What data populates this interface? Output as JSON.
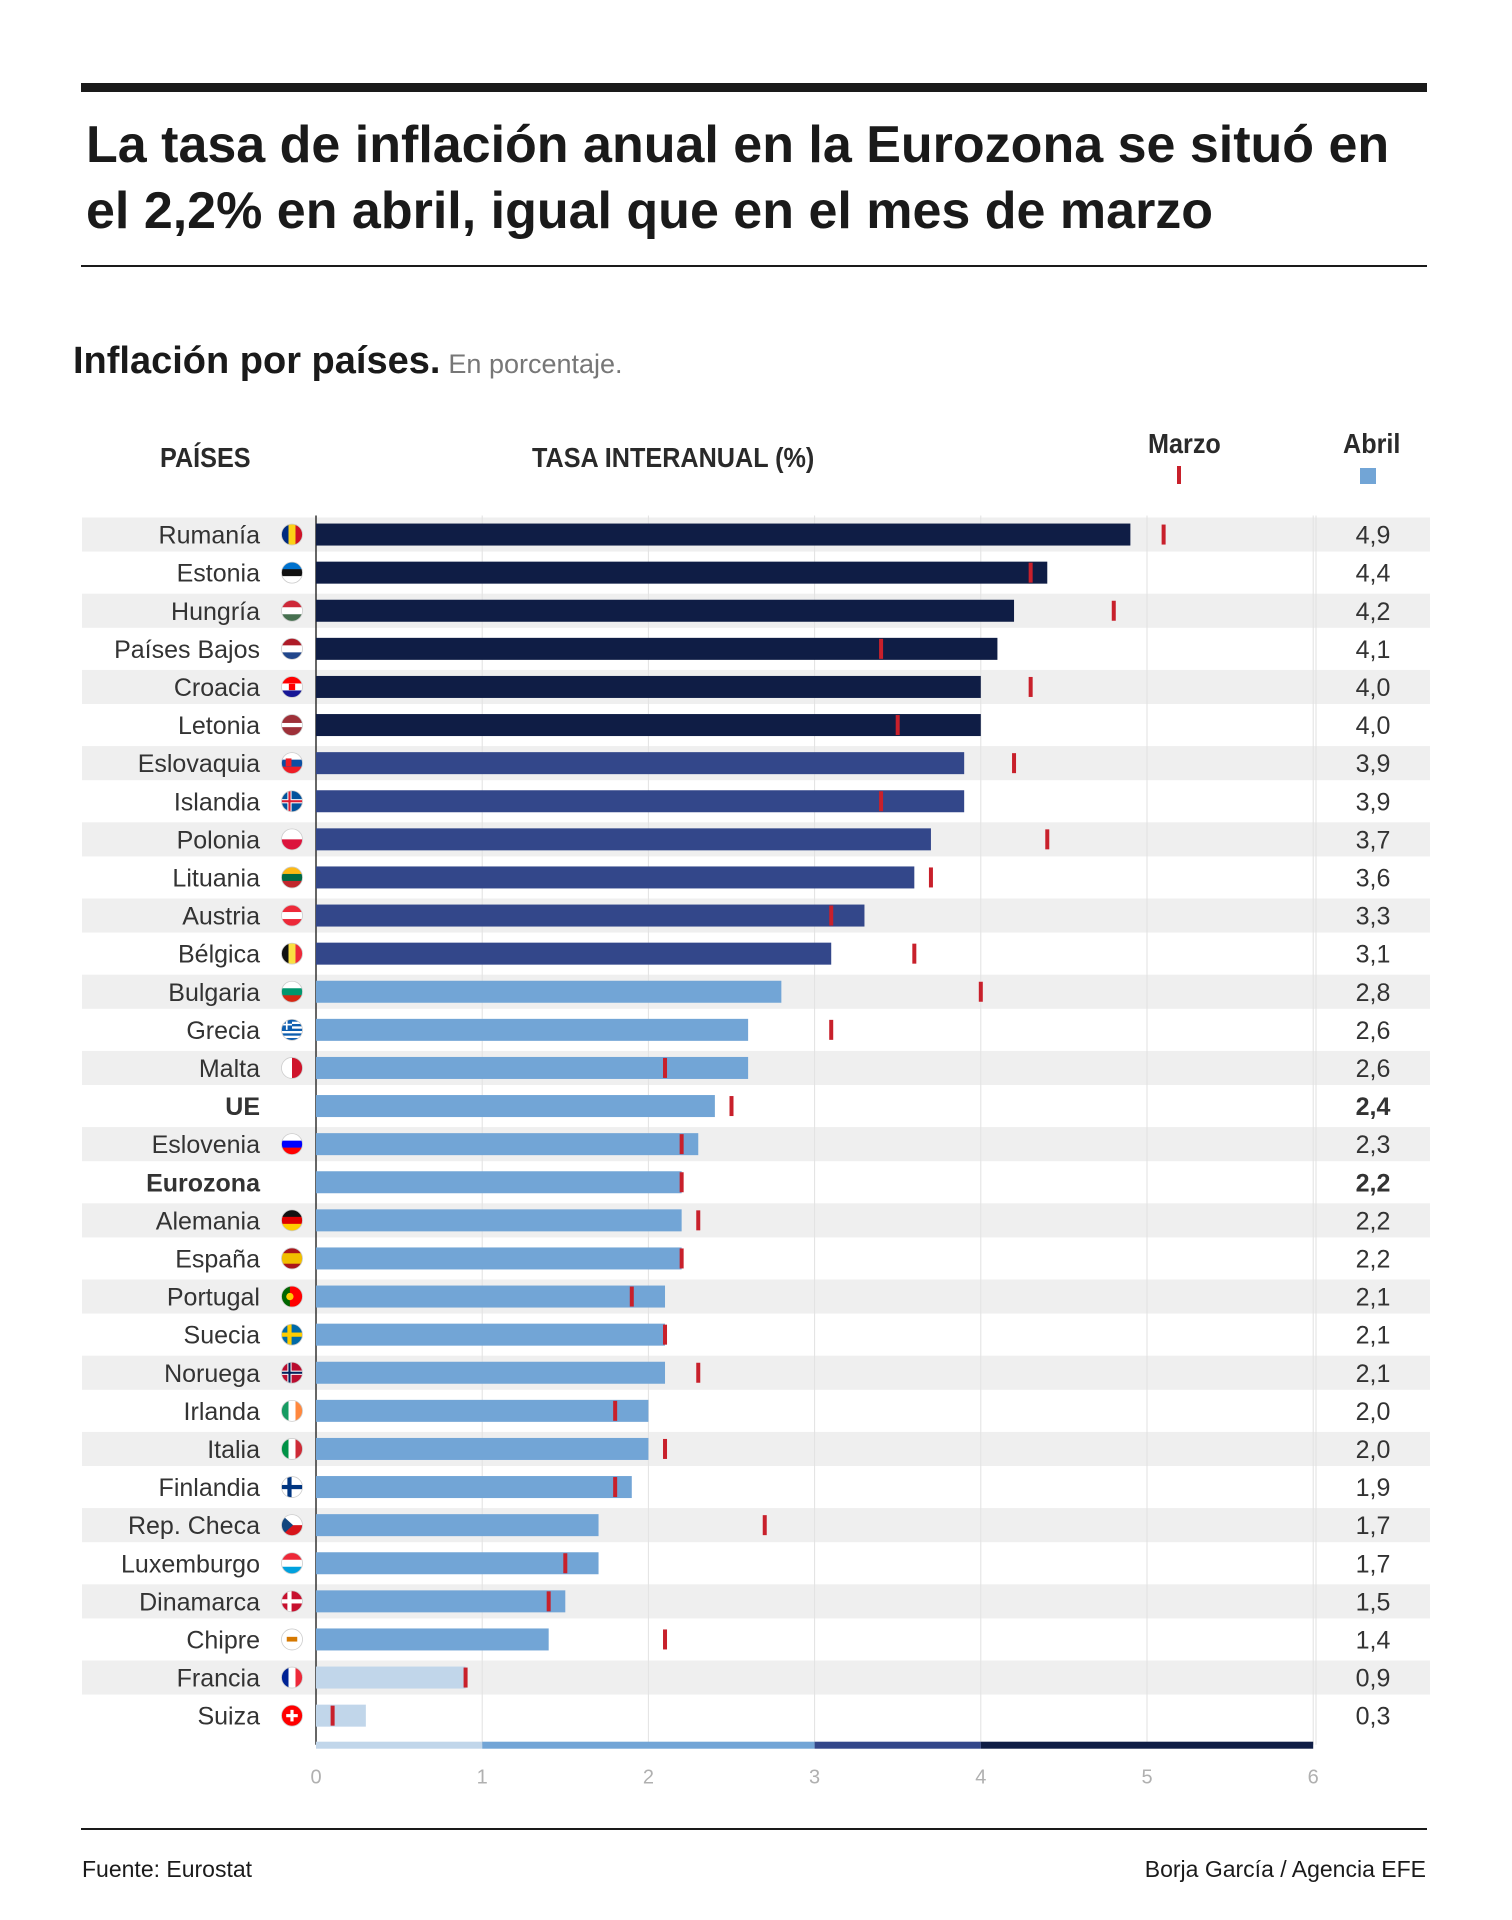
{
  "header": {
    "title": "La tasa de inflación anual en la Eurozona se situó en el 2,2% en abril, igual que en el mes de marzo",
    "subtitle": "Inflación por países.",
    "subtitle_note": "En porcentaje."
  },
  "columns": {
    "countries": "PAÍSES",
    "rate": "TASA INTERANUAL (%)",
    "march": "Marzo",
    "april": "Abril"
  },
  "colors": {
    "tier_4_6": "#0f1d45",
    "tier_3_4": "#33478a",
    "tier_1_3": "#72a5d6",
    "tier_0_1": "#c1d6ea",
    "march_marker": "#c8202b",
    "row_stripe": "#efefef"
  },
  "chart_data": {
    "type": "bar",
    "orientation": "horizontal",
    "xlim": [
      0,
      6
    ],
    "x_ticks": [
      "0",
      "1",
      "2",
      "3",
      "4",
      "5",
      "6"
    ],
    "grid": true,
    "color_scale": [
      {
        "from": 0,
        "to": 1,
        "color": "#c1d6ea"
      },
      {
        "from": 1,
        "to": 3,
        "color": "#72a5d6"
      },
      {
        "from": 3,
        "to": 4,
        "color": "#33478a"
      },
      {
        "from": 4,
        "to": 6,
        "color": "#0f1d45"
      }
    ],
    "rows": [
      {
        "country": "Rumanía",
        "april": 4.9,
        "march": 5.1,
        "label": "4,9",
        "flag": "romania"
      },
      {
        "country": "Estonia",
        "april": 4.4,
        "march": 4.3,
        "label": "4,4",
        "flag": "estonia"
      },
      {
        "country": "Hungría",
        "april": 4.2,
        "march": 4.8,
        "label": "4,2",
        "flag": "hungary"
      },
      {
        "country": "Países Bajos",
        "april": 4.1,
        "march": 3.4,
        "label": "4,1",
        "flag": "netherlands"
      },
      {
        "country": "Croacia",
        "april": 4.0,
        "march": 4.3,
        "label": "4,0",
        "flag": "croatia"
      },
      {
        "country": "Letonia",
        "april": 4.0,
        "march": 3.5,
        "label": "4,0",
        "flag": "latvia"
      },
      {
        "country": "Eslovaquia",
        "april": 3.9,
        "march": 4.2,
        "label": "3,9",
        "flag": "slovakia"
      },
      {
        "country": "Islandia",
        "april": 3.9,
        "march": 3.4,
        "label": "3,9",
        "flag": "iceland"
      },
      {
        "country": "Polonia",
        "april": 3.7,
        "march": 4.4,
        "label": "3,7",
        "flag": "poland"
      },
      {
        "country": "Lituania",
        "april": 3.6,
        "march": 3.7,
        "label": "3,6",
        "flag": "lithuania"
      },
      {
        "country": "Austria",
        "april": 3.3,
        "march": 3.1,
        "label": "3,3",
        "flag": "austria"
      },
      {
        "country": "Bélgica",
        "april": 3.1,
        "march": 3.6,
        "label": "3,1",
        "flag": "belgium"
      },
      {
        "country": "Bulgaria",
        "april": 2.8,
        "march": 4.0,
        "label": "2,8",
        "flag": "bulgaria"
      },
      {
        "country": "Grecia",
        "april": 2.6,
        "march": 3.1,
        "label": "2,6",
        "flag": "greece"
      },
      {
        "country": "Malta",
        "april": 2.6,
        "march": 2.1,
        "label": "2,6",
        "flag": "malta"
      },
      {
        "country": "UE",
        "april": 2.4,
        "march": 2.5,
        "label": "2,4",
        "flag": "",
        "bold": true
      },
      {
        "country": "Eslovenia",
        "april": 2.3,
        "march": 2.2,
        "label": "2,3",
        "flag": "slovenia"
      },
      {
        "country": "Eurozona",
        "april": 2.2,
        "march": 2.2,
        "label": "2,2",
        "flag": "",
        "bold": true
      },
      {
        "country": "Alemania",
        "april": 2.2,
        "march": 2.3,
        "label": "2,2",
        "flag": "germany"
      },
      {
        "country": "España",
        "april": 2.2,
        "march": 2.2,
        "label": "2,2",
        "flag": "spain"
      },
      {
        "country": "Portugal",
        "april": 2.1,
        "march": 1.9,
        "label": "2,1",
        "flag": "portugal"
      },
      {
        "country": "Suecia",
        "april": 2.1,
        "march": 2.1,
        "label": "2,1",
        "flag": "sweden"
      },
      {
        "country": "Noruega",
        "april": 2.1,
        "march": 2.3,
        "label": "2,1",
        "flag": "norway"
      },
      {
        "country": "Irlanda",
        "april": 2.0,
        "march": 1.8,
        "label": "2,0",
        "flag": "ireland"
      },
      {
        "country": "Italia",
        "april": 2.0,
        "march": 2.1,
        "label": "2,0",
        "flag": "italy"
      },
      {
        "country": "Finlandia",
        "april": 1.9,
        "march": 1.8,
        "label": "1,9",
        "flag": "finland"
      },
      {
        "country": "Rep. Checa",
        "april": 1.7,
        "march": 2.7,
        "label": "1,7",
        "flag": "czech-republic"
      },
      {
        "country": "Luxemburgo",
        "april": 1.7,
        "march": 1.5,
        "label": "1,7",
        "flag": "luxembourg"
      },
      {
        "country": "Dinamarca",
        "april": 1.5,
        "march": 1.4,
        "label": "1,5",
        "flag": "denmark"
      },
      {
        "country": "Chipre",
        "april": 1.4,
        "march": 2.1,
        "label": "1,4",
        "flag": "cyprus"
      },
      {
        "country": "Francia",
        "april": 0.9,
        "march": 0.9,
        "label": "0,9",
        "flag": "france"
      },
      {
        "country": "Suiza",
        "april": 0.3,
        "march": 0.1,
        "label": "0,3",
        "flag": "switzerland"
      }
    ]
  },
  "footer": {
    "source": "Fuente: Eurostat",
    "credit": "Borja García / Agencia EFE"
  }
}
